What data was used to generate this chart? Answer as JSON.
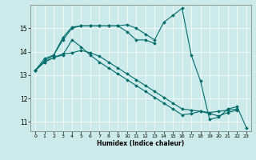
{
  "xlabel": "Humidex (Indice chaleur)",
  "ylabel": "",
  "background_color": "#cceaea",
  "line_color": "#006b6b",
  "xlim": [
    -0.5,
    23.5
  ],
  "ylim": [
    10.6,
    16.0
  ],
  "yticks": [
    11,
    12,
    13,
    14,
    15
  ],
  "xticks": [
    0,
    1,
    2,
    3,
    4,
    5,
    6,
    7,
    8,
    9,
    10,
    11,
    12,
    13,
    14,
    15,
    16,
    17,
    18,
    19,
    20,
    21,
    22,
    23
  ],
  "series": [
    [
      13.2,
      13.6,
      13.85,
      14.6,
      15.05,
      15.1,
      15.1,
      15.1,
      15.1,
      15.1,
      15.15,
      15.0,
      14.75,
      14.5,
      15.25,
      15.55,
      15.85,
      13.85,
      12.75,
      11.1,
      11.2,
      11.55,
      11.65,
      10.75
    ],
    [
      13.2,
      13.7,
      13.85,
      14.5,
      15.0,
      15.1,
      15.1,
      15.1,
      15.1,
      15.1,
      14.85,
      14.5,
      14.5,
      14.35,
      null,
      null,
      null,
      null,
      null,
      null,
      null,
      null,
      null,
      null
    ],
    [
      13.2,
      13.55,
      13.75,
      13.85,
      14.5,
      14.2,
      13.85,
      13.55,
      13.3,
      13.05,
      12.8,
      12.55,
      12.3,
      12.05,
      11.8,
      11.55,
      11.3,
      11.35,
      11.45,
      11.35,
      11.25,
      11.4,
      11.5,
      null
    ],
    [
      13.2,
      13.55,
      13.75,
      13.9,
      13.95,
      14.05,
      13.95,
      13.8,
      13.55,
      13.3,
      13.05,
      12.8,
      12.55,
      12.3,
      12.05,
      11.8,
      11.55,
      11.5,
      11.45,
      11.4,
      11.45,
      11.5,
      11.55,
      null
    ]
  ]
}
